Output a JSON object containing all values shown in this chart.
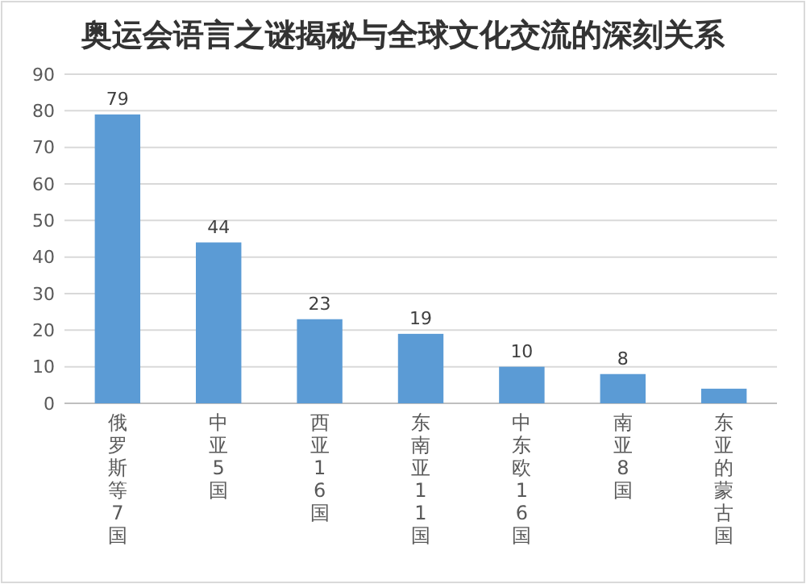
{
  "chart_data": {
    "type": "bar",
    "title": "奥运会语言之谜揭秘与全球文化交流的深刻关系",
    "categories": [
      "俄罗斯等7国",
      "中亚5国",
      "西亚16国",
      "东南亚11国",
      "中东欧16国",
      "南亚8国",
      "东亚的蒙古国"
    ],
    "values": [
      79,
      44,
      23,
      19,
      10,
      8,
      4
    ],
    "value_labels": [
      "79",
      "44",
      "23",
      "19",
      "10",
      "8",
      null
    ],
    "color": "#5b9bd5",
    "ylim": [
      0,
      90
    ],
    "yticks": [
      0,
      10,
      20,
      30,
      40,
      50,
      60,
      70,
      80,
      90
    ],
    "grid": "y"
  }
}
